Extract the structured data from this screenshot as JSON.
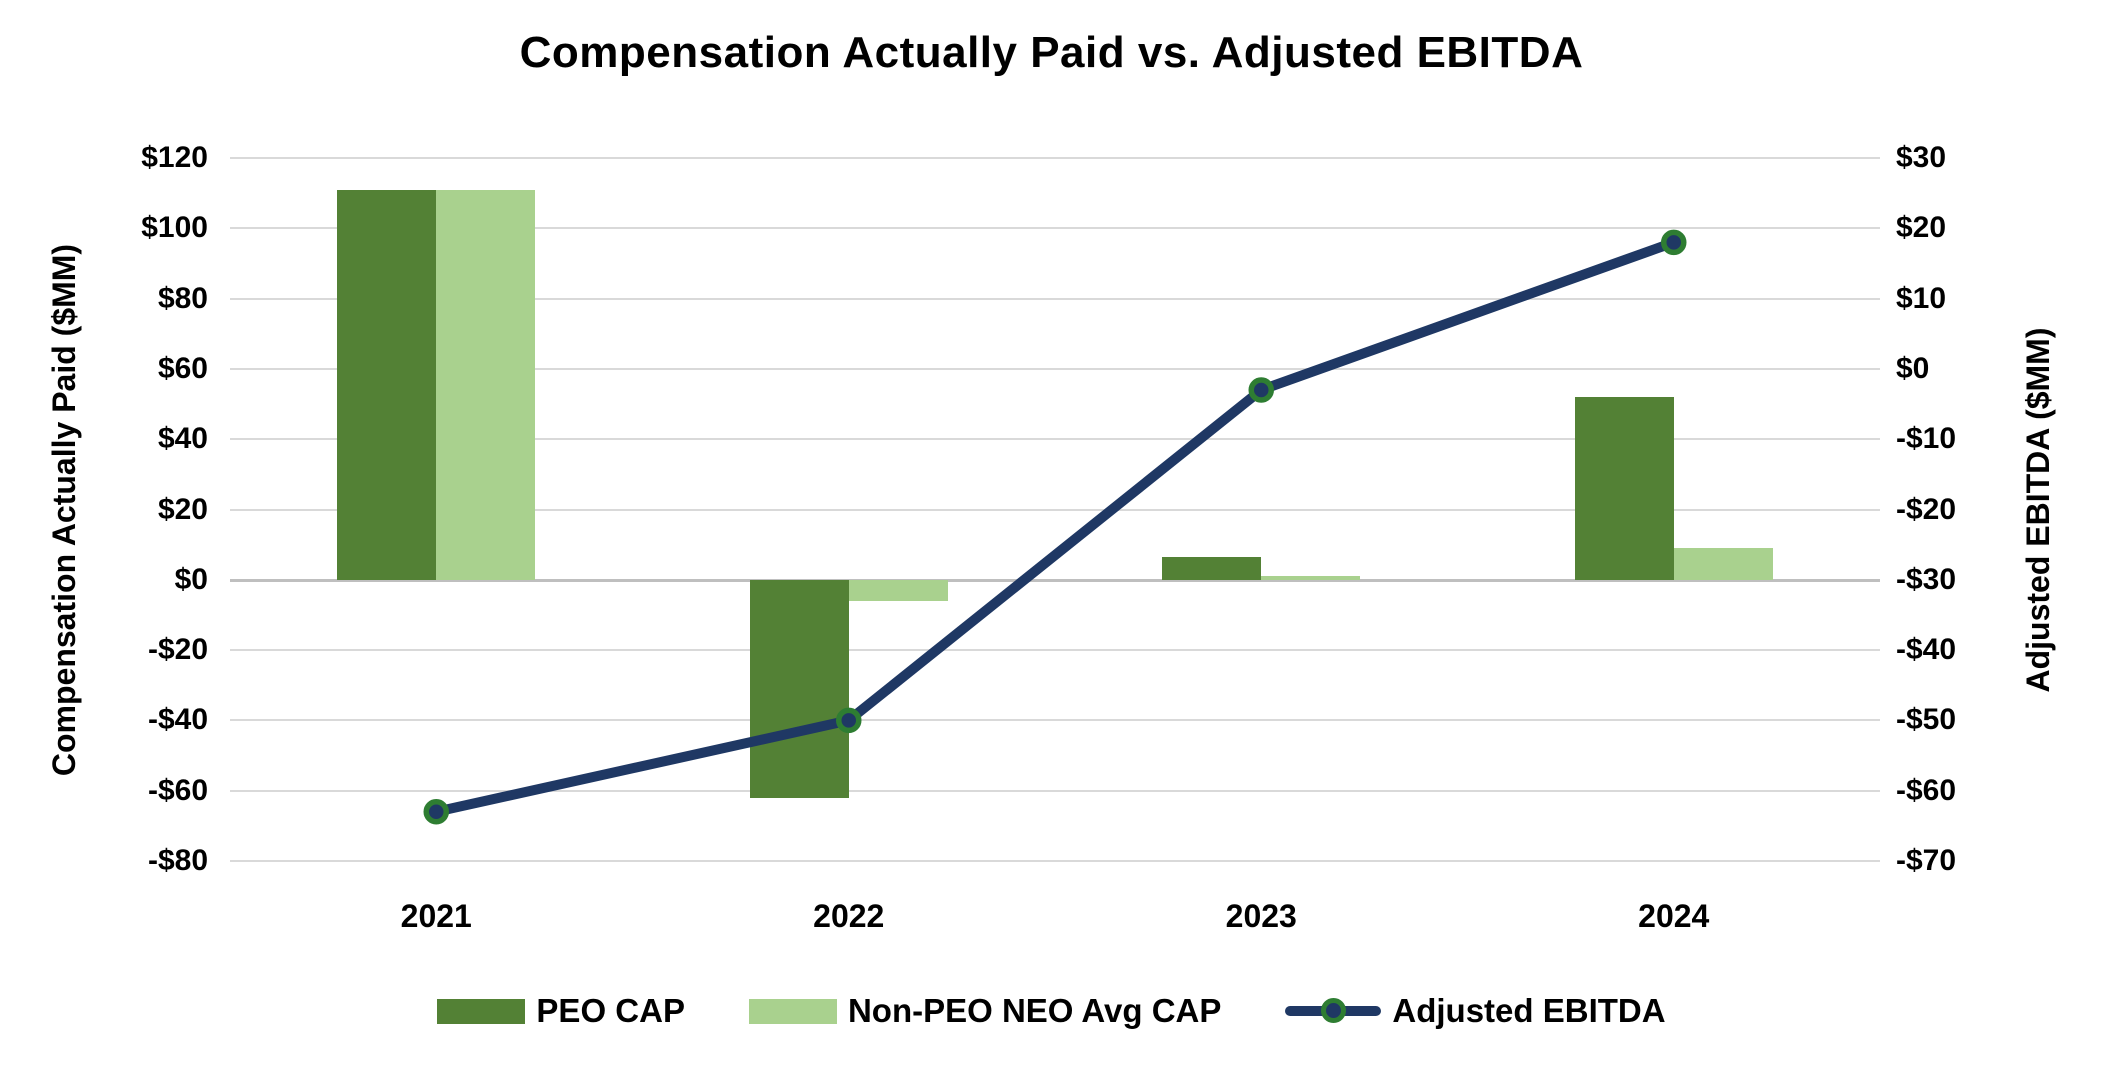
{
  "chart_data": {
    "type": "combo-bar-line",
    "title": "Compensation Actually Paid vs. Adjusted EBITDA",
    "categories": [
      "2021",
      "2022",
      "2023",
      "2024"
    ],
    "series": [
      {
        "name": "PEO CAP",
        "type": "bar",
        "axis": "left",
        "color": "#538135",
        "values": [
          111,
          -62,
          6.5,
          52
        ]
      },
      {
        "name": "Non-PEO NEO Avg CAP",
        "type": "bar",
        "axis": "left",
        "color": "#A9D18E",
        "values": [
          111,
          -6,
          1,
          9
        ]
      },
      {
        "name": "Adjusted EBITDA",
        "type": "line",
        "axis": "right",
        "color": "#1F3864",
        "marker_fill": "#1F3864",
        "marker_ring": "#2E7D32",
        "values": [
          -63,
          -50,
          -3,
          18
        ]
      }
    ],
    "left_axis": {
      "label": "Compensation Actually Paid ($MM)",
      "min": -80,
      "max": 120,
      "step": 20,
      "tick_labels": [
        "$120",
        "$100",
        "$80",
        "$60",
        "$40",
        "$20",
        "$0",
        "-$20",
        "-$40",
        "-$60",
        "-$80"
      ]
    },
    "right_axis": {
      "label": "Adjusted EBITDA ($MM)",
      "min": -70,
      "max": 30,
      "step": 10,
      "tick_labels": [
        "$30",
        "$20",
        "$10",
        "$0",
        "-$10",
        "-$20",
        "-$30",
        "-$40",
        "-$50",
        "-$60",
        "-$70"
      ]
    },
    "grid": true,
    "legend_position": "bottom",
    "colors": {
      "gridline": "#D9D9D9",
      "zero_line": "#BFBFBF",
      "text": "#000000",
      "background": "#FFFFFF"
    }
  }
}
